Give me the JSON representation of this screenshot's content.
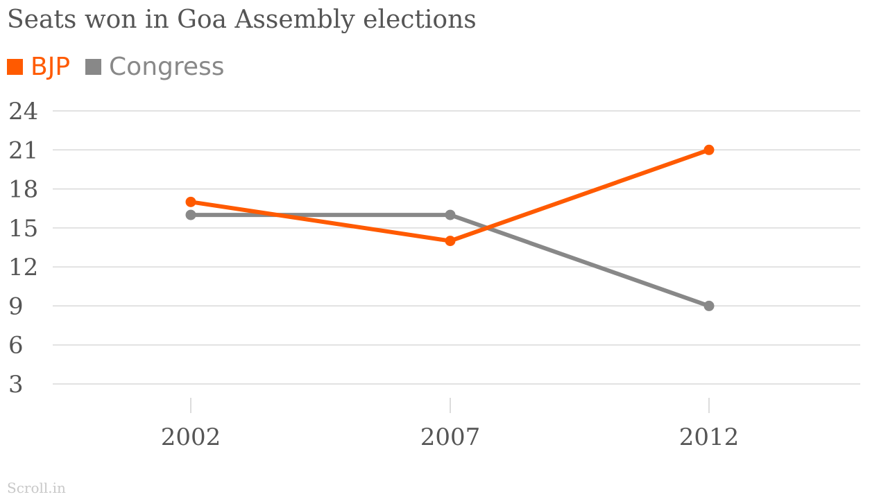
{
  "chart_data": {
    "type": "line",
    "title": "Seats won in Goa Assembly elections",
    "x": [
      "2002",
      "2007",
      "2012"
    ],
    "series": [
      {
        "name": "BJP",
        "values": [
          17,
          14,
          21
        ],
        "color": "#ff5a00"
      },
      {
        "name": "Congress",
        "values": [
          16,
          16,
          9
        ],
        "color": "#888888"
      }
    ],
    "yticks": [
      3,
      6,
      9,
      12,
      15,
      18,
      21,
      24
    ],
    "ylim": [
      3,
      24
    ],
    "grid": true,
    "legend_position": "top-left",
    "xlabel": "",
    "ylabel": ""
  },
  "credit": "Scroll.in"
}
